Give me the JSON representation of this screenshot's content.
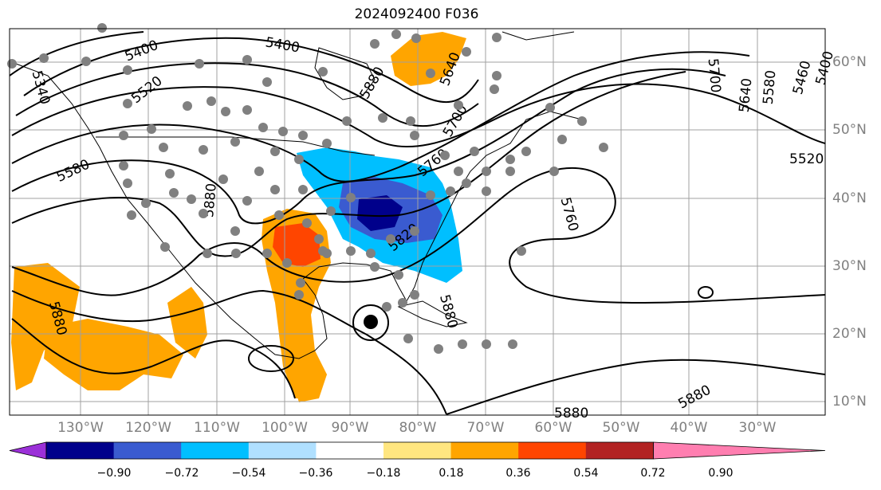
{
  "title": "2024092400 F036",
  "lon_labels": [
    "130°W",
    "120°W",
    "110°W",
    "100°W",
    "90°W",
    "80°W",
    "70°W",
    "60°W",
    "50°W",
    "40°W",
    "30°W"
  ],
  "lat_labels": [
    "60°N",
    "50°N",
    "40°N",
    "30°N",
    "20°N",
    "10°N"
  ],
  "colorbar": {
    "ticks": [
      "−0.90",
      "−0.72",
      "−0.54",
      "−0.36",
      "−0.18",
      "0.18",
      "0.36",
      "0.54",
      "0.72",
      "0.90"
    ],
    "colors": [
      "#9b30d8",
      "#00008b",
      "#3a5bd0",
      "#00bfff",
      "#b0e0ff",
      "#ffffff",
      "#ffe680",
      "#ffa500",
      "#ff4500",
      "#b22222",
      "#ff7eb0"
    ]
  },
  "contour_labels": [
    "5400",
    "5400",
    "5520",
    "5580",
    "5340",
    "5640",
    "5700",
    "5700",
    "5640",
    "5580",
    "5460",
    "5400",
    "5520",
    "5760",
    "5760",
    "5820",
    "5880",
    "5880",
    "5880",
    "5880",
    "5880",
    "5880"
  ],
  "colors": {
    "frame": "#000000",
    "grid": "#a0a0a0",
    "station": "#808080",
    "contour": "#000000"
  }
}
